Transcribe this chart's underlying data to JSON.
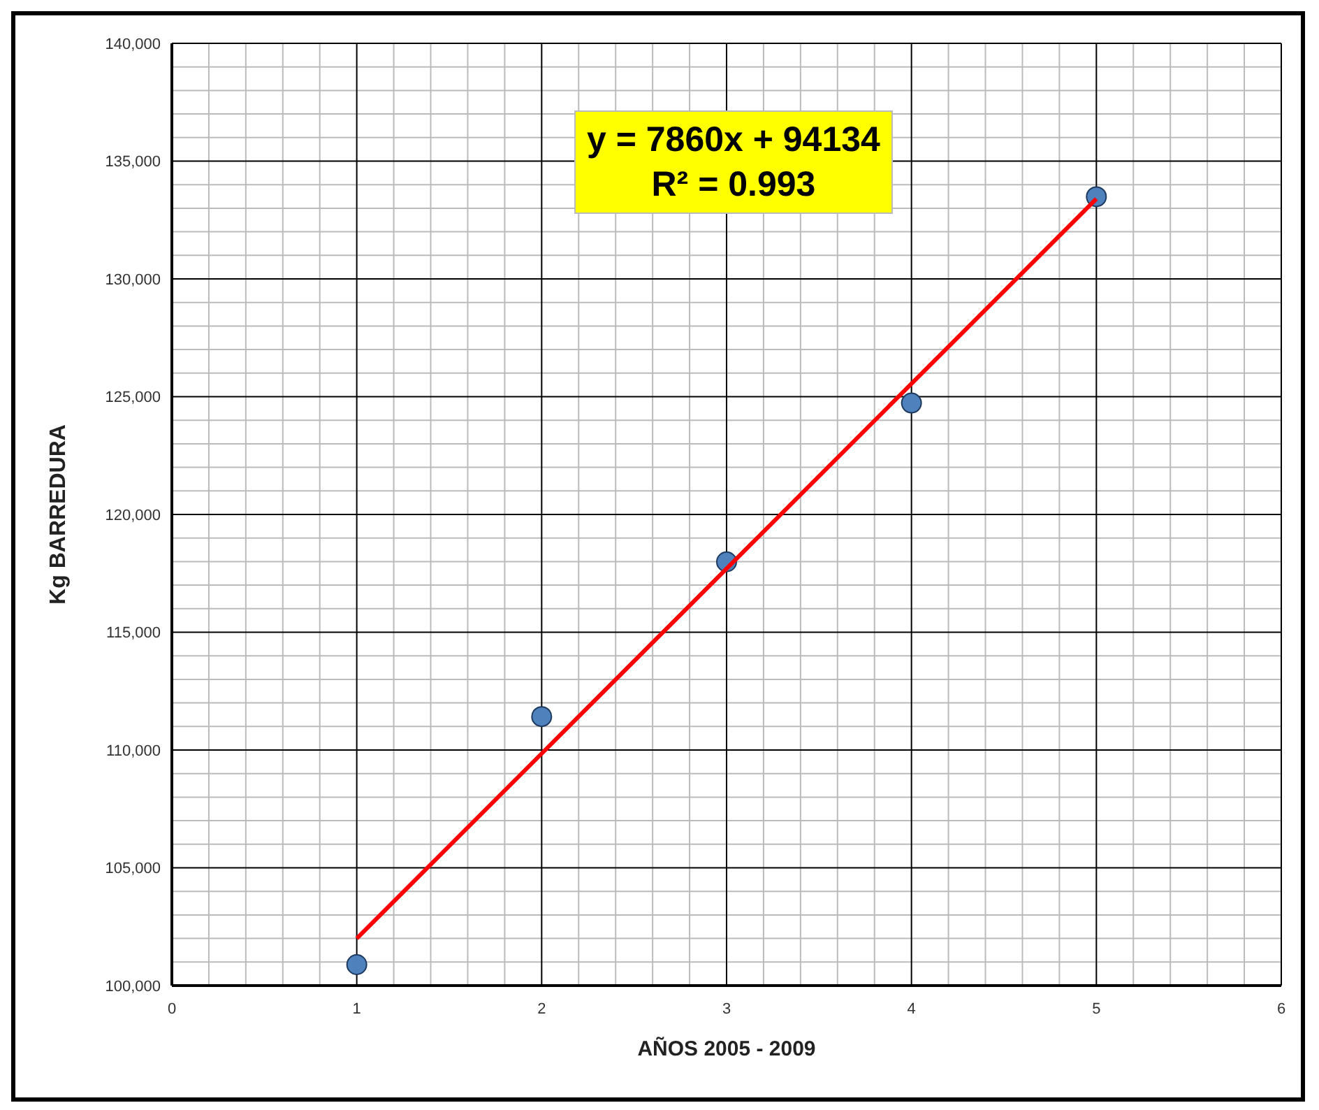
{
  "chart_data": {
    "type": "scatter",
    "xlabel": "AÑOS 2005 - 2009",
    "ylabel": "Kg BARREDURA",
    "annotations": [
      "y = 7860x + 94134",
      "R² = 0.993"
    ],
    "series": [
      {
        "color": "#4f81bd",
        "x": [
          1,
          2,
          3,
          4,
          5
        ],
        "values": [
          100890,
          111420,
          117990,
          124730,
          133490
        ]
      },
      {
        "type": "line",
        "color": "#ff0000",
        "marker": "none",
        "x": [
          1,
          5
        ],
        "values": [
          102000,
          133400
        ]
      }
    ],
    "xlim": [
      0,
      6
    ],
    "xticks": [
      0,
      1,
      2,
      3,
      4,
      5,
      6
    ],
    "ylim": [
      100000,
      140000
    ],
    "yticks": [
      {
        "value": 100000,
        "label": "100,000"
      },
      {
        "value": 105000,
        "label": "105,000"
      },
      {
        "value": 110000,
        "label": "110,000"
      },
      {
        "value": 115000,
        "label": "115,000"
      },
      {
        "value": 120000,
        "label": "120,000"
      },
      {
        "value": 125000,
        "label": "125,000"
      },
      {
        "value": 130000,
        "label": "130,000"
      },
      {
        "value": 135000,
        "label": "135,000"
      },
      {
        "value": 140000,
        "label": "140,000"
      }
    ],
    "grid": true,
    "marker": "circle",
    "legend": false
  }
}
